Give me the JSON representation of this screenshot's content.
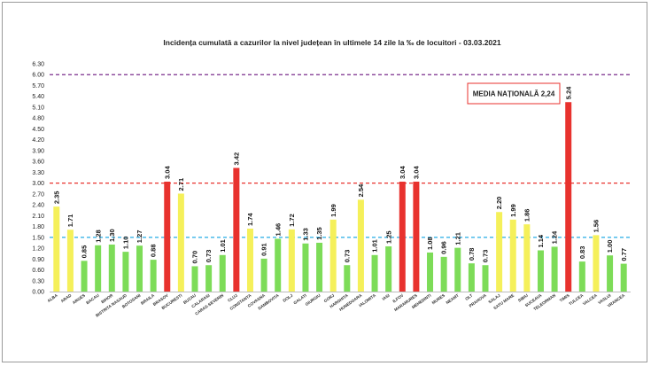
{
  "chart_data": {
    "type": "bar",
    "title": "Incidența cumulată a cazurilor la nivel județean în ultimele 14 zile la ‰ de locuitori - 03.03.2021",
    "ylim": [
      0,
      6.3
    ],
    "yticks": [
      "0.00",
      "0.30",
      "0.60",
      "0.90",
      "1.20",
      "1.50",
      "1.80",
      "2.10",
      "2.40",
      "2.70",
      "3.00",
      "3.30",
      "3.60",
      "3.90",
      "4.20",
      "4.50",
      "4.80",
      "5.10",
      "5.40",
      "5.70",
      "6.00",
      "6.30"
    ],
    "categories": [
      "ALBA",
      "ARAD",
      "ARGES",
      "BACAU",
      "BIHOR",
      "BISTRITA NASAUD",
      "BOTOSANI",
      "BRAILA",
      "BRASOV",
      "BUCURESTI",
      "BUZAU",
      "CALARASI",
      "CARAS-SEVERIN",
      "CLUJ",
      "CONSTANTA",
      "COVASNA",
      "DAMBOVITA",
      "DOLJ",
      "GALATI",
      "GIURGIU",
      "GORJ",
      "HARGHITA",
      "HUNEDOARA",
      "IALOMITA",
      "IASI",
      "ILFOV",
      "MARAMURES",
      "MEHEDINTI",
      "MURES",
      "NEAMT",
      "OLT",
      "PRAHOVA",
      "SALAJ",
      "SATU MARE",
      "SIBIU",
      "SUCEAVA",
      "TELEORMAN",
      "TIMIS",
      "TULCEA",
      "VALCEA",
      "VASLUI",
      "VRANCEA"
    ],
    "values": [
      2.35,
      1.71,
      0.85,
      1.28,
      1.3,
      1.1,
      1.27,
      0.88,
      3.04,
      2.71,
      0.7,
      0.73,
      1.01,
      3.42,
      1.74,
      0.91,
      1.46,
      1.72,
      1.33,
      1.35,
      1.99,
      0.73,
      2.54,
      1.01,
      1.25,
      3.04,
      3.04,
      1.08,
      0.96,
      1.21,
      0.78,
      0.73,
      2.2,
      1.99,
      1.86,
      1.14,
      1.24,
      5.24,
      0.83,
      1.56,
      1.0,
      0.77
    ],
    "value_labels": [
      "2.35",
      "1.71",
      "0.85",
      "1.28",
      "1.30",
      "1.10",
      "1.27",
      "0.88",
      "3.04",
      "2.71",
      "0.70",
      "0.73",
      "1.01",
      "3.42",
      "1.74",
      "0.91",
      "1.46",
      "1.72",
      "1.33",
      "1.35",
      "1.99",
      "0.73",
      "2.54",
      "1.01",
      "1.25",
      "3.04",
      "3.04",
      "1.08",
      "0.96",
      "1.21",
      "0.78",
      "0.73",
      "2.20",
      "1.99",
      "1.86",
      "1.14",
      "1.24",
      "5.24",
      "0.83",
      "1.56",
      "1.00",
      "0.77"
    ],
    "bar_colors": {
      "low": "#7ddc58",
      "mid": "#f5f05a",
      "high": "#e8322e"
    },
    "reference_lines": [
      {
        "value": 6.0,
        "color": "#7a2c8c",
        "style": "dashed"
      },
      {
        "value": 3.0,
        "color": "#e8322e",
        "style": "dashed"
      },
      {
        "value": 1.5,
        "color": "#3ab4e8",
        "style": "dashed"
      }
    ],
    "annotation": {
      "text": "MEDIA NAȚIONALĂ 2,24",
      "border_color": "#e8322e"
    },
    "grid": false,
    "legend": "none"
  }
}
